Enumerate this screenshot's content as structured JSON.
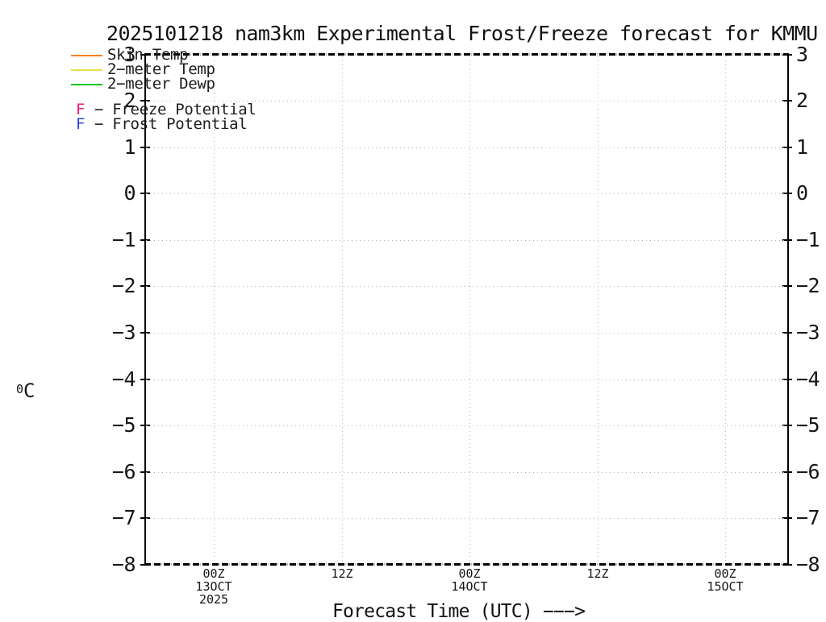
{
  "title": "2025101218 nam3km Experimental Frost/Freeze forecast for KMMU",
  "legend": {
    "series": [
      {
        "label": "Skin Temp",
        "color": "#f8821a"
      },
      {
        "label": "2−meter Temp",
        "color": "#e8df4e"
      },
      {
        "label": "2−meter Dewp",
        "color": "#00c41c"
      }
    ],
    "potentials": [
      {
        "symbol": "F",
        "label": "− Freeze Potential",
        "color": "#ea1c77"
      },
      {
        "symbol": "F",
        "label": "− Frost Potential",
        "color": "#2b44df"
      }
    ]
  },
  "y_axis": {
    "unit_sup": "0",
    "unit": "C",
    "ticks": [
      "3",
      "2",
      "1",
      "0",
      "−1",
      "−2",
      "−3",
      "−4",
      "−5",
      "−6",
      "−7",
      "−8"
    ]
  },
  "x_axis": {
    "label": "Forecast Time (UTC) −−−>",
    "ticks": [
      [
        "00Z",
        "13OCT",
        "2025"
      ],
      [
        "12Z"
      ],
      [
        "00Z",
        "14OCT"
      ],
      [
        "12Z"
      ],
      [
        "00Z",
        "15OCT"
      ]
    ]
  },
  "chart_data": {
    "type": "line",
    "title": "2025101218 nam3km Experimental Frost/Freeze forecast for KMMU",
    "xlabel": "Forecast Time (UTC) --->",
    "ylabel": "degrees C",
    "ylim": [
      -8,
      3
    ],
    "y_ticks": [
      3,
      2,
      1,
      0,
      -1,
      -2,
      -3,
      -4,
      -5,
      -6,
      -7,
      -8
    ],
    "x_tick_labels": [
      "00Z 13OCT 2025",
      "12Z",
      "00Z 14OCT",
      "12Z",
      "00Z 15OCT"
    ],
    "grid": true,
    "legend_position": "top-left",
    "series": [
      {
        "name": "Skin Temp",
        "color": "#f8821a",
        "values": []
      },
      {
        "name": "2-meter Temp",
        "color": "#e8df4e",
        "values": []
      },
      {
        "name": "2-meter Dewp",
        "color": "#00c41c",
        "values": []
      }
    ],
    "point_annotations": [
      {
        "symbol": "F",
        "meaning": "Freeze Potential",
        "color": "#ea1c77"
      },
      {
        "symbol": "F",
        "meaning": "Frost Potential",
        "color": "#2b44df"
      }
    ],
    "note": "empty frame - no data points plotted"
  }
}
